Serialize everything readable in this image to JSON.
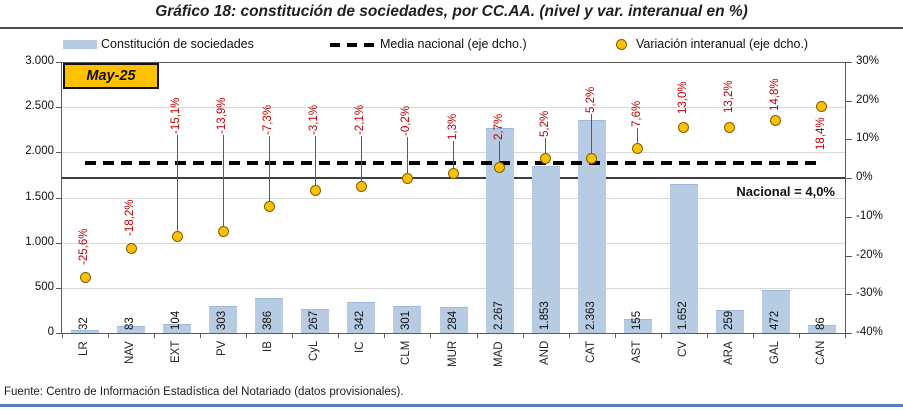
{
  "title": "Gráfico 18: constitución de sociedades, por CC.AA. (nivel y var. interanual en %)",
  "period_badge": "May-25",
  "legend": {
    "bars_label": "Constitución de sociedades",
    "mean_label": "Media nacional (eje dcho.)",
    "variation_label": "Variación interanual (eje dcho.)"
  },
  "annotation_national": "Nacional = 4,0%",
  "footer_source": "Fuente: Centro de Información Estadística del Notariado (datos provisionales).",
  "colors": {
    "bar_fill": "#b7cbe3",
    "bar_edge": "#9db8d9",
    "marker_fill": "#ffc000",
    "marker_edge": "#7e6000",
    "variation_label": "#c00000",
    "mean_line": "#000000",
    "grid": "#d9d9d9",
    "axis": "#595959",
    "zero_line": "#3f3f3f",
    "badge_fill": "#ffc000",
    "footer_rule": "#4f81bd"
  },
  "chart_data": {
    "type": "bar",
    "subtype": "combo: bars (left axis) + scatter markers with callout labels (right axis) + dashed national-mean line (right axis)",
    "title": "Gráfico 18: constitución de sociedades, por CC.AA. (nivel y var. interanual en %)",
    "period": "May-25",
    "legend_position": "top",
    "grid": "horizontal gridlines every 500 units of left axis",
    "categories": [
      "LR",
      "NAV",
      "EXT",
      "PV",
      "IB",
      "CyL",
      "IC",
      "CLM",
      "MUR",
      "MAD",
      "AND",
      "CAT",
      "AST",
      "CV",
      "ARA",
      "GAL",
      "CAN"
    ],
    "series": [
      {
        "name": "Constitución de sociedades",
        "type": "bar",
        "axis": "left",
        "values": [
          32,
          83,
          104,
          303,
          386,
          267,
          342,
          301,
          284,
          2267,
          1853,
          2363,
          155,
          1652,
          259,
          472,
          86
        ],
        "value_labels": [
          "32",
          "83",
          "104",
          "303",
          "386",
          "267",
          "342",
          "301",
          "284",
          "2.267",
          "1.853",
          "2.363",
          "155",
          "1.652",
          "259",
          "472",
          "86"
        ]
      },
      {
        "name": "Variación interanual (eje dcho.)",
        "type": "scatter",
        "axis": "right",
        "values": [
          -25.6,
          -18.2,
          -15.1,
          -13.9,
          -7.3,
          -3.1,
          -2.1,
          -0.2,
          1.3,
          2.7,
          5.2,
          5.2,
          7.6,
          13.0,
          13.2,
          14.8,
          18.4
        ],
        "value_labels": [
          "-25,6%",
          "-18,2%",
          "-15,1%",
          "-13,9%",
          "-7,3%",
          "-3,1%",
          "-2,1%",
          "-0,2%",
          "1,3%",
          "2,7%",
          "5,2%",
          "5,2%",
          "7,6%",
          "13,0%",
          "13,2%",
          "14,8%",
          "18,4%"
        ],
        "label_anchor_pct": [
          -22.5,
          -15.0,
          11.4,
          11.4,
          11.2,
          11.2,
          11.2,
          10.9,
          9.8,
          9.8,
          10.6,
          16.8,
          13.2,
          16.6,
          16.8,
          17.3,
          15.8
        ],
        "label_side": [
          "above",
          "above",
          "above",
          "above",
          "above",
          "above",
          "above",
          "above",
          "above",
          "above",
          "above",
          "above",
          "above",
          "above",
          "above",
          "above",
          "below"
        ]
      },
      {
        "name": "Media nacional (eje dcho.)",
        "type": "dashed-line",
        "axis": "right",
        "value": 4.0,
        "annotation": "Nacional = 4,0%"
      }
    ],
    "left_axis": {
      "min": 0,
      "max": 3000,
      "ticks": [
        {
          "v": 3000,
          "t": "3.000"
        },
        {
          "v": 2500,
          "t": "2.500"
        },
        {
          "v": 2000,
          "t": "2.000"
        },
        {
          "v": 1500,
          "t": "1.500"
        },
        {
          "v": 1000,
          "t": "1.000"
        },
        {
          "v": 500,
          "t": "500"
        },
        {
          "v": 0,
          "t": "0"
        }
      ]
    },
    "right_axis": {
      "min": -40,
      "max": 30,
      "ticks": [
        {
          "v": 30,
          "t": "30%"
        },
        {
          "v": 20,
          "t": "20%"
        },
        {
          "v": 10,
          "t": "10%"
        },
        {
          "v": 0,
          "t": "0%"
        },
        {
          "v": -10,
          "t": "-10%"
        },
        {
          "v": -20,
          "t": "-20%"
        },
        {
          "v": -30,
          "t": "-30%"
        },
        {
          "v": -40,
          "t": "-40%"
        }
      ]
    }
  }
}
